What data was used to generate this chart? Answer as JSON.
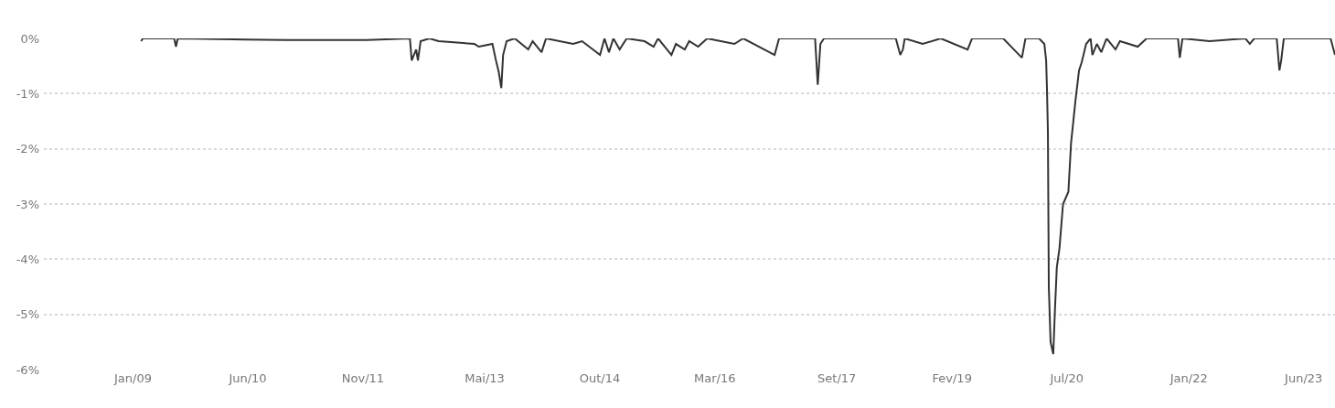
{
  "chart_data": {
    "type": "line",
    "x": [
      "2009-02-06",
      "2009-02-14",
      "2009-07-05",
      "2009-07-13",
      "2009-07-21",
      "2010-05-23",
      "2010-11-20",
      "2011-11-18",
      "2012-05-30",
      "2012-06-07",
      "2012-06-27",
      "2012-07-05",
      "2012-07-17",
      "2012-08-26",
      "2012-10-06",
      "2013-03-16",
      "2013-04-05",
      "2013-06-05",
      "2013-06-21",
      "2013-07-03",
      "2013-07-15",
      "2013-07-23",
      "2013-08-08",
      "2013-09-13",
      "2013-11-13",
      "2013-12-03",
      "2014-01-12",
      "2014-02-01",
      "2014-06-03",
      "2014-07-13",
      "2014-10-02",
      "2014-10-22",
      "2014-11-11",
      "2014-12-01",
      "2014-12-29",
      "2015-01-30",
      "2015-04-20",
      "2015-05-31",
      "2015-06-20",
      "2015-08-19",
      "2015-09-08",
      "2015-10-18",
      "2015-11-07",
      "2015-12-17",
      "2016-01-27",
      "2016-03-28",
      "2016-05-28",
      "2016-07-07",
      "2016-11-25",
      "2016-12-15",
      "2017-05-26",
      "2017-06-07",
      "2017-06-19",
      "2017-07-05",
      "2018-05-24",
      "2018-06-13",
      "2018-06-25",
      "2018-07-03",
      "2018-09-22",
      "2018-12-12",
      "2019-04-12",
      "2019-05-02",
      "2019-09-19",
      "2019-11-18",
      "2019-12-12",
      "2019-12-28",
      "2020-02-27",
      "2020-03-22",
      "2020-03-30",
      "2020-04-03",
      "2020-04-07",
      "2020-04-11",
      "2020-04-19",
      "2020-05-01",
      "2020-05-09",
      "2020-05-17",
      "2020-05-29",
      "2020-06-14",
      "2020-07-08",
      "2020-07-20",
      "2020-08-09",
      "2020-08-25",
      "2020-09-06",
      "2020-09-26",
      "2020-10-16",
      "2020-10-24",
      "2020-11-13",
      "2020-12-03",
      "2020-12-27",
      "2021-02-05",
      "2021-02-25",
      "2021-05-16",
      "2021-06-25",
      "2021-11-13",
      "2021-11-21",
      "2021-12-03",
      "2022-04-04",
      "2022-09-12",
      "2022-10-02",
      "2022-10-22",
      "2023-01-31",
      "2023-02-12",
      "2023-02-20",
      "2023-03-04",
      "2023-09-30",
      "2023-10-20"
    ],
    "series": [
      {
        "color": "#333333",
        "values": [
          -0.05,
          0,
          0,
          -0.15,
          0,
          -0.02,
          -0.03,
          -0.03,
          0,
          -0.4,
          -0.2,
          -0.4,
          -0.05,
          0,
          -0.05,
          -0.1,
          -0.15,
          -0.1,
          -0.4,
          -0.6,
          -0.9,
          -0.3,
          -0.05,
          0,
          -0.2,
          -0.05,
          -0.25,
          0,
          -0.1,
          -0.05,
          -0.3,
          0,
          -0.25,
          0,
          -0.2,
          0,
          -0.05,
          -0.15,
          0,
          -0.3,
          -0.1,
          -0.2,
          -0.05,
          -0.15,
          0,
          -0.05,
          -0.1,
          0,
          -0.3,
          0,
          0,
          -0.84,
          -0.1,
          0,
          0,
          -0.3,
          -0.2,
          0,
          -0.1,
          0,
          -0.2,
          0,
          0,
          -0.25,
          -0.35,
          0,
          0,
          -0.1,
          -0.4,
          -0.95,
          -1.7,
          -4.5,
          -5.5,
          -5.72,
          -4.88,
          -4.15,
          -3.8,
          -3.0,
          -2.78,
          -1.9,
          -1.12,
          -0.58,
          -0.43,
          -0.1,
          0,
          -0.3,
          -0.1,
          -0.25,
          0,
          -0.2,
          -0.05,
          -0.15,
          0,
          0,
          -0.35,
          0,
          -0.05,
          0,
          -0.1,
          0,
          0,
          -0.58,
          -0.4,
          0,
          0,
          -0.3
        ]
      }
    ],
    "xlim": [
      "2007-11-27",
      "2023-10-20"
    ],
    "xticks": [
      {
        "value": "2009-01-01",
        "label": "Jan/09"
      },
      {
        "value": "2010-06-01",
        "label": "Jun/10"
      },
      {
        "value": "2011-11-01",
        "label": "Nov/11"
      },
      {
        "value": "2013-05-01",
        "label": "Mai/13"
      },
      {
        "value": "2014-10-01",
        "label": "Out/14"
      },
      {
        "value": "2016-03-01",
        "label": "Mar/16"
      },
      {
        "value": "2017-09-01",
        "label": "Set/17"
      },
      {
        "value": "2019-02-01",
        "label": "Fev/19"
      },
      {
        "value": "2020-07-01",
        "label": "Jul/20"
      },
      {
        "value": "2022-01-01",
        "label": "Jan/22"
      },
      {
        "value": "2023-06-01",
        "label": "Jun/23"
      }
    ],
    "ylim": [
      -6,
      0
    ],
    "yticks": [
      {
        "value": 0,
        "label": "0%"
      },
      {
        "value": -1,
        "label": "-1%"
      },
      {
        "value": -2,
        "label": "-2%"
      },
      {
        "value": -3,
        "label": "-3%"
      },
      {
        "value": -4,
        "label": "-4%"
      },
      {
        "value": -5,
        "label": "-5%"
      },
      {
        "value": -6,
        "label": "-6%"
      }
    ],
    "grid": "y",
    "legend": false,
    "marker": "none",
    "line_style": "solid"
  }
}
